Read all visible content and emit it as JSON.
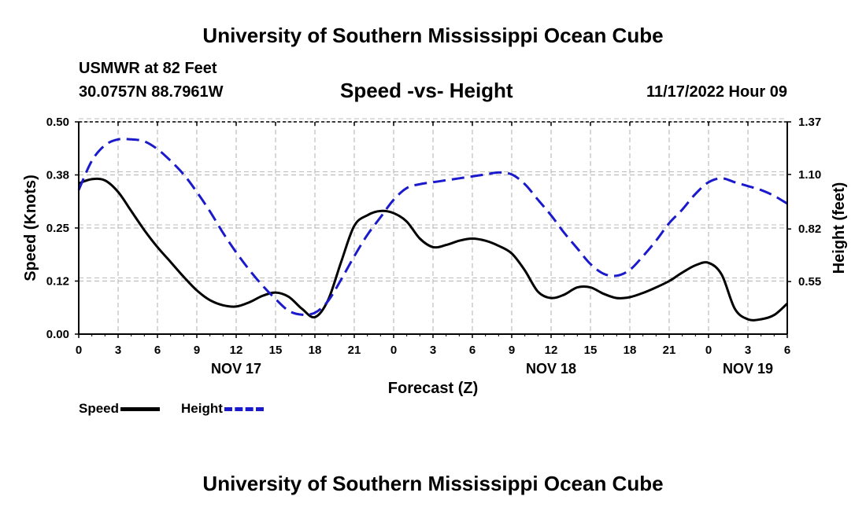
{
  "header": {
    "title": "University of Southern Mississippi Ocean Cube",
    "station": "USMWR at 82 Feet",
    "coords": "30.0757N  88.7961W",
    "chart_title": "Speed -vs- Height",
    "datetime": "11/17/2022 Hour 09"
  },
  "footer": {
    "title": "University of Southern Mississippi Ocean Cube"
  },
  "legend": {
    "speed_label": "Speed",
    "height_label": "Height"
  },
  "colors": {
    "speed": "#000000",
    "height": "#1a1acc",
    "grid": "#bdbdbd"
  },
  "chart_data": {
    "type": "line",
    "title": "Speed -vs- Height",
    "xlabel": "Forecast (Z)",
    "ylabel": "Speed (Knots)",
    "y2label": "Height (feet)",
    "xlim": [
      0,
      54
    ],
    "ylim": [
      0,
      0.5
    ],
    "y2lim": [
      0.28,
      1.37
    ],
    "x_ticks": [
      0,
      3,
      6,
      9,
      12,
      15,
      18,
      21,
      24,
      27,
      30,
      33,
      36,
      39,
      42,
      45,
      48,
      51,
      54
    ],
    "x_tick_labels": [
      "0",
      "3",
      "6",
      "9",
      "12",
      "15",
      "18",
      "21",
      "0",
      "3",
      "6",
      "9",
      "12",
      "15",
      "18",
      "21",
      "0",
      "3",
      "6"
    ],
    "date_labels": [
      {
        "x": 12,
        "label": "NOV 17"
      },
      {
        "x": 36,
        "label": "NOV 18"
      },
      {
        "x": 51,
        "label": "NOV 19"
      }
    ],
    "y_ticks": [
      0.0,
      0.125,
      0.25,
      0.375,
      0.5
    ],
    "y_tick_labels": [
      "0.00",
      "0.12",
      "0.25",
      "0.38",
      "0.50"
    ],
    "y2_ticks": [
      0.55,
      0.82,
      1.1,
      1.37
    ],
    "y2_tick_labels": [
      "0.55",
      "0.82",
      "1.10",
      "1.37"
    ],
    "grid": true,
    "series": [
      {
        "name": "Speed",
        "axis": "left",
        "style": "solid",
        "x": [
          0,
          1,
          2,
          3,
          4,
          5,
          6,
          7,
          8,
          9,
          10,
          11,
          12,
          13,
          14,
          15,
          16,
          17,
          18,
          19,
          20,
          21,
          22,
          23,
          24,
          25,
          26,
          27,
          28,
          29,
          30,
          31,
          32,
          33,
          34,
          35,
          36,
          37,
          38,
          39,
          40,
          41,
          42,
          43,
          44,
          45,
          46,
          47,
          48,
          49,
          50,
          51,
          52,
          53,
          54
        ],
        "values": [
          0.355,
          0.365,
          0.362,
          0.335,
          0.29,
          0.245,
          0.205,
          0.17,
          0.135,
          0.103,
          0.08,
          0.068,
          0.065,
          0.075,
          0.09,
          0.098,
          0.088,
          0.06,
          0.04,
          0.08,
          0.17,
          0.255,
          0.28,
          0.29,
          0.285,
          0.265,
          0.225,
          0.205,
          0.21,
          0.22,
          0.225,
          0.22,
          0.208,
          0.19,
          0.15,
          0.1,
          0.085,
          0.093,
          0.11,
          0.11,
          0.095,
          0.085,
          0.087,
          0.097,
          0.11,
          0.125,
          0.145,
          0.162,
          0.168,
          0.14,
          0.06,
          0.035,
          0.035,
          0.045,
          0.072
        ]
      },
      {
        "name": "Height",
        "axis": "right",
        "style": "dashed",
        "x": [
          0,
          1,
          2,
          3,
          4,
          5,
          6,
          7,
          8,
          9,
          10,
          11,
          12,
          13,
          14,
          15,
          16,
          17,
          18,
          19,
          20,
          21,
          22,
          23,
          24,
          25,
          26,
          27,
          28,
          29,
          30,
          31,
          32,
          33,
          34,
          35,
          36,
          37,
          38,
          39,
          40,
          41,
          42,
          43,
          44,
          45,
          46,
          47,
          48,
          49,
          50,
          51,
          52,
          53,
          54
        ],
        "values": [
          1.02,
          1.17,
          1.25,
          1.28,
          1.28,
          1.27,
          1.23,
          1.17,
          1.1,
          1.01,
          0.91,
          0.8,
          0.7,
          0.61,
          0.53,
          0.46,
          0.4,
          0.38,
          0.39,
          0.45,
          0.56,
          0.68,
          0.79,
          0.88,
          0.97,
          1.03,
          1.05,
          1.06,
          1.07,
          1.08,
          1.09,
          1.1,
          1.11,
          1.1,
          1.05,
          0.97,
          0.89,
          0.8,
          0.72,
          0.64,
          0.59,
          0.58,
          0.61,
          0.68,
          0.76,
          0.85,
          0.92,
          1.0,
          1.06,
          1.08,
          1.06,
          1.04,
          1.02,
          0.99,
          0.95
        ]
      }
    ]
  }
}
